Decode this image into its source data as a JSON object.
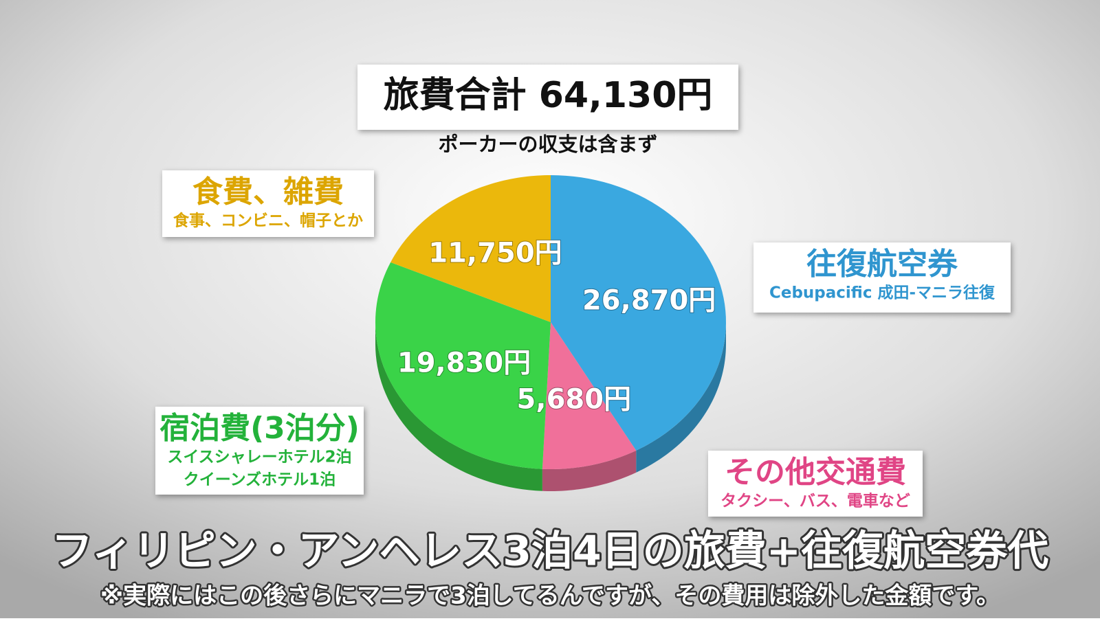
{
  "chart_data": {
    "type": "pie",
    "title": "旅費合計 64,130円",
    "subtitle": "ポーカーの収支は含まず",
    "categories": [
      "往復航空券",
      "その他交通費",
      "宿泊費(3泊分)",
      "食費、雑費"
    ],
    "descriptions": [
      [
        "Cebupacific 成田-マニラ往復"
      ],
      [
        "タクシー、バス、電車など"
      ],
      [
        "スイスシャレーホテル2泊",
        "クイーンズホテル1泊"
      ],
      [
        "食事、コンビニ、帽子とか"
      ]
    ],
    "values": [
      26870,
      5680,
      19830,
      11750
    ],
    "value_labels": [
      "26,870円",
      "5,680円",
      "19,830円",
      "11,750円"
    ],
    "colors": [
      "#3aa8e0",
      "#f0709a",
      "#3ad348",
      "#ebb80c"
    ],
    "label_colors": [
      "#2f95cf",
      "#e04585",
      "#23b23a",
      "#dca500"
    ],
    "caption": "フィリピン・アンヘレス3泊4日の旅費+往復航空券代",
    "note": "※実際にはこの後さらにマニラで3泊してるんですが、その費用は除外した金額です。"
  }
}
